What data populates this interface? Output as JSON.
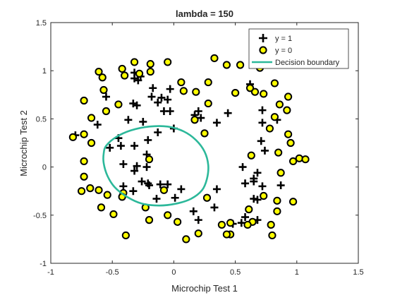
{
  "chart_data": {
    "type": "scatter",
    "title": "lambda = 150",
    "xlabel": "Microchip Test 1",
    "ylabel": "Microchip Test 2",
    "xlim": [
      -1,
      1.5
    ],
    "ylim": [
      -1,
      1.5
    ],
    "xticks": [
      -1,
      -0.5,
      0,
      0.5,
      1,
      1.5
    ],
    "xtick_labels": [
      "-1",
      "-0.5",
      "0",
      "0.5",
      "1",
      "1.5"
    ],
    "yticks": [
      -1,
      -0.5,
      0,
      0.5,
      1,
      1.5
    ],
    "ytick_labels": [
      "-1",
      "-0.5",
      "0",
      "0.5",
      "1",
      "1.5"
    ],
    "grid": false,
    "legend_position": "top-right",
    "series": [
      {
        "name": "y = 1",
        "marker": "plus",
        "color": "#000000",
        "points": [
          [
            -0.32,
            0.98
          ],
          [
            -0.32,
            0.92
          ],
          [
            -0.55,
            0.73
          ],
          [
            -0.3,
            0.64
          ],
          [
            -0.33,
            0.66
          ],
          [
            -0.27,
            0.94
          ],
          [
            -0.29,
            0.9
          ],
          [
            -0.17,
            0.82
          ],
          [
            -0.18,
            0.73
          ],
          [
            -0.03,
            0.81
          ],
          [
            -0.1,
            0.72
          ],
          [
            -0.05,
            0.7
          ],
          [
            -0.13,
            0.67
          ],
          [
            -0.08,
            0.58
          ],
          [
            -0.03,
            0.58
          ],
          [
            0.2,
            0.58
          ],
          [
            0.17,
            0.54
          ],
          [
            0.22,
            0.51
          ],
          [
            0.35,
            0.46
          ],
          [
            0.44,
            0.56
          ],
          [
            0.5,
            0.77
          ],
          [
            0.62,
            0.86
          ],
          [
            0.72,
            0.59
          ],
          [
            0.72,
            0.46
          ],
          [
            0.84,
            0.49
          ],
          [
            0.71,
            0.27
          ],
          [
            0.74,
            0.17
          ],
          [
            -0.8,
            0.33
          ],
          [
            -0.62,
            0.44
          ],
          [
            -0.45,
            0.3
          ],
          [
            -0.52,
            0.2
          ],
          [
            -0.43,
            0.22
          ],
          [
            -0.32,
            0.22
          ],
          [
            -0.37,
            0.49
          ],
          [
            -0.25,
            0.47
          ],
          [
            -0.13,
            0.36
          ],
          [
            0.0,
            0.4
          ],
          [
            -0.21,
            0.28
          ],
          [
            -0.22,
            0.13
          ],
          [
            -0.41,
            0.03
          ],
          [
            -0.3,
            0.01
          ],
          [
            -0.32,
            -0.04
          ],
          [
            -0.22,
            0.0
          ],
          [
            -0.26,
            -0.15
          ],
          [
            -0.21,
            -0.17
          ],
          [
            -0.11,
            -0.18
          ],
          [
            -0.05,
            -0.18
          ],
          [
            -0.33,
            -0.25
          ],
          [
            -0.2,
            -0.19
          ],
          [
            -0.41,
            -0.2
          ],
          [
            -0.14,
            -0.33
          ],
          [
            0.06,
            -0.23
          ],
          [
            0.01,
            -0.32
          ],
          [
            0.16,
            -0.46
          ],
          [
            0.2,
            -0.55
          ],
          [
            0.33,
            -0.42
          ],
          [
            0.48,
            -0.59
          ],
          [
            0.58,
            -0.52
          ],
          [
            0.68,
            -0.55
          ],
          [
            0.55,
            -0.58
          ],
          [
            0.35,
            -0.23
          ],
          [
            0.68,
            -0.34
          ],
          [
            0.65,
            -0.33
          ],
          [
            0.72,
            -0.2
          ],
          [
            0.65,
            -0.15
          ],
          [
            0.58,
            -0.17
          ],
          [
            0.87,
            -0.19
          ],
          [
            0.65,
            -0.12
          ],
          [
            0.68,
            -0.06
          ],
          [
            0.56,
            0.0
          ]
        ]
      },
      {
        "name": "y = 0",
        "marker": "circle",
        "color": "#ffff00",
        "points": [
          [
            0.17,
            0.49
          ],
          [
            0.28,
            0.88
          ],
          [
            0.43,
            1.06
          ],
          [
            0.18,
            0.78
          ],
          [
            -0.05,
            1.09
          ],
          [
            -0.19,
            0.99
          ],
          [
            -0.28,
            0.97
          ],
          [
            -0.4,
            0.95
          ],
          [
            -0.57,
            0.8
          ],
          [
            -0.73,
            0.69
          ],
          [
            -0.61,
            0.99
          ],
          [
            -0.58,
            0.93
          ],
          [
            -0.82,
            0.31
          ],
          [
            -0.67,
            0.25
          ],
          [
            -0.73,
            0.06
          ],
          [
            -0.73,
            -0.1
          ],
          [
            -0.75,
            -0.25
          ],
          [
            -0.68,
            -0.22
          ],
          [
            -0.54,
            -0.29
          ],
          [
            -0.59,
            -0.42
          ],
          [
            -0.49,
            -0.49
          ],
          [
            -0.41,
            -0.27
          ],
          [
            -0.42,
            -0.31
          ],
          [
            -0.23,
            -0.42
          ],
          [
            -0.08,
            -0.24
          ],
          [
            -0.05,
            -0.5
          ],
          [
            0.03,
            -0.57
          ],
          [
            0.2,
            -0.69
          ],
          [
            0.46,
            -0.7
          ],
          [
            0.43,
            -0.7
          ],
          [
            0.8,
            -0.71
          ],
          [
            0.97,
            -0.36
          ],
          [
            1.02,
            0.09
          ],
          [
            0.97,
            0.06
          ],
          [
            0.85,
            0.15
          ],
          [
            0.92,
            0.59
          ],
          [
            0.82,
            0.52
          ],
          [
            0.93,
            0.73
          ],
          [
            0.66,
            0.78
          ],
          [
            0.82,
            0.87
          ],
          [
            0.54,
            1.06
          ],
          [
            0.33,
            1.13
          ],
          [
            0.06,
            0.88
          ],
          [
            0.08,
            0.79
          ],
          [
            -0.19,
            1.07
          ],
          [
            -0.32,
            1.09
          ],
          [
            -0.42,
            1.02
          ],
          [
            0.1,
            -0.75
          ],
          [
            0.39,
            -0.6
          ],
          [
            0.46,
            -0.58
          ],
          [
            0.61,
            -0.44
          ],
          [
            0.73,
            -0.3
          ],
          [
            0.84,
            -0.35
          ],
          [
            0.87,
            -0.06
          ],
          [
            0.93,
            0.34
          ],
          [
            0.86,
            0.65
          ],
          [
            0.7,
            1.03
          ],
          [
            0.73,
            0.76
          ],
          [
            0.62,
            0.82
          ],
          [
            0.5,
            0.77
          ],
          [
            0.28,
            0.66
          ],
          [
            0.25,
            0.35
          ],
          [
            -0.2,
            0.08
          ],
          [
            -0.61,
            -0.24
          ],
          [
            -0.73,
            0.34
          ],
          [
            -0.67,
            0.51
          ],
          [
            -0.55,
            0.58
          ],
          [
            -0.45,
            0.65
          ],
          [
            -0.39,
            -0.71
          ],
          [
            -0.2,
            -0.55
          ],
          [
            0.27,
            -0.32
          ],
          [
            0.64,
            -0.57
          ],
          [
            0.6,
            -0.6
          ],
          [
            0.79,
            -0.6
          ],
          [
            0.84,
            -0.46
          ],
          [
            0.95,
            0.25
          ],
          [
            1.07,
            0.08
          ],
          [
            0.78,
            0.4
          ],
          [
            0.63,
            0.12
          ]
        ]
      }
    ],
    "boundary": {
      "name": "Decision boundary",
      "color": "#2cb89a",
      "points": [
        [
          -0.55,
          0.22
        ],
        [
          -0.47,
          0.31
        ],
        [
          -0.35,
          0.38
        ],
        [
          -0.2,
          0.42
        ],
        [
          -0.05,
          0.42
        ],
        [
          0.08,
          0.37
        ],
        [
          0.18,
          0.28
        ],
        [
          0.25,
          0.16
        ],
        [
          0.28,
          0.02
        ],
        [
          0.27,
          -0.12
        ],
        [
          0.23,
          -0.24
        ],
        [
          0.14,
          -0.33
        ],
        [
          0.02,
          -0.38
        ],
        [
          -0.12,
          -0.4
        ],
        [
          -0.26,
          -0.38
        ],
        [
          -0.38,
          -0.31
        ],
        [
          -0.48,
          -0.21
        ],
        [
          -0.54,
          -0.09
        ],
        [
          -0.57,
          0.04
        ],
        [
          -0.57,
          0.14
        ],
        [
          -0.55,
          0.22
        ]
      ]
    }
  }
}
